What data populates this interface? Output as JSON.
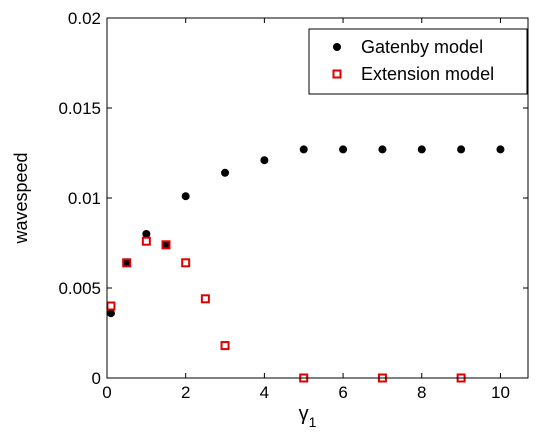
{
  "chart_data": {
    "type": "scatter",
    "xlabel": "γ",
    "xlabel_subscript": "1",
    "ylabel": "wavespeed",
    "xlim": [
      0,
      10.7
    ],
    "ylim": [
      0,
      0.02
    ],
    "xticks": [
      0,
      2,
      4,
      6,
      8,
      10
    ],
    "xtick_labels": [
      "0",
      "2",
      "4",
      "6",
      "8",
      "10"
    ],
    "yticks": [
      0,
      0.005,
      0.01,
      0.015,
      0.02
    ],
    "ytick_labels": [
      "0",
      "0.005",
      "0.01",
      "0.015",
      "0.02"
    ],
    "grid": false,
    "legend_position": "top-right",
    "series": [
      {
        "name": "Gatenby model",
        "marker": "filled-circle",
        "color": "#000000",
        "x": [
          0.1,
          0.5,
          1,
          1.5,
          2,
          3,
          4,
          5,
          6,
          7,
          8,
          9,
          10
        ],
        "y": [
          0.0036,
          0.0064,
          0.008,
          0.0074,
          0.0101,
          0.0114,
          0.0121,
          0.0127,
          0.0127,
          0.0127,
          0.0127,
          0.0127,
          0.0127
        ]
      },
      {
        "name": "Extension model",
        "marker": "open-square",
        "color": "#e00000",
        "x": [
          0.1,
          0.5,
          1,
          1.5,
          2,
          2.5,
          3,
          5,
          7,
          9
        ],
        "y": [
          0.004,
          0.0064,
          0.0076,
          0.0074,
          0.0064,
          0.0044,
          0.0018,
          0,
          0,
          0
        ]
      }
    ]
  }
}
